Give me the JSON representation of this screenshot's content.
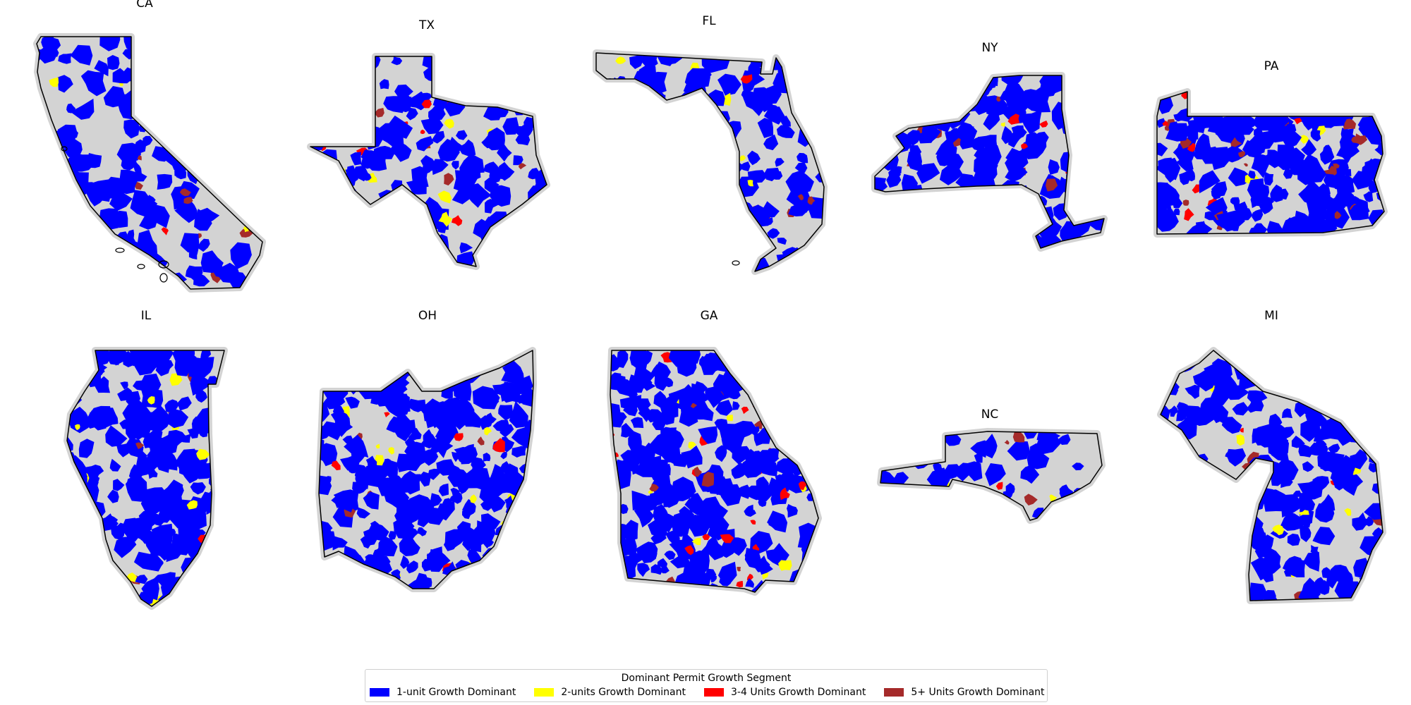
{
  "legend": {
    "title": "Dominant Permit Growth Segment",
    "items": [
      {
        "label": "1-unit Growth Dominant",
        "color": "#0000ff"
      },
      {
        "label": "2-units Growth Dominant",
        "color": "#ffff00"
      },
      {
        "label": "3-4 Units Growth Dominant",
        "color": "#ff0000"
      },
      {
        "label": "5+ Units Growth Dominant",
        "color": "#a52a2a"
      }
    ]
  },
  "no_data_color": "#d3d3d3",
  "panels": [
    {
      "label": "CA",
      "blue": 0.35,
      "yellow": 0.02,
      "red": 0.004,
      "brown": 0.03
    },
    {
      "label": "TX",
      "blue": 0.45,
      "yellow": 0.04,
      "red": 0.02,
      "brown": 0.04
    },
    {
      "label": "FL",
      "blue": 0.4,
      "yellow": 0.03,
      "red": 0.004,
      "brown": 0.05
    },
    {
      "label": "NY",
      "blue": 0.75,
      "yellow": 0.04,
      "red": 0.02,
      "brown": 0.06
    },
    {
      "label": "PA",
      "blue": 0.75,
      "yellow": 0.02,
      "red": 0.05,
      "brown": 0.06
    },
    {
      "label": "IL",
      "blue": 0.68,
      "yellow": 0.05,
      "red": 0.01,
      "brown": 0.03
    },
    {
      "label": "OH",
      "blue": 0.68,
      "yellow": 0.04,
      "red": 0.02,
      "brown": 0.02
    },
    {
      "label": "GA",
      "blue": 0.62,
      "yellow": 0.02,
      "red": 0.06,
      "brown": 0.03
    },
    {
      "label": "NC",
      "blue": 0.4,
      "yellow": 0.04,
      "red": 0.01,
      "brown": 0.08
    },
    {
      "label": "MI",
      "blue": 0.58,
      "yellow": 0.02,
      "red": 0.02,
      "brown": 0.02
    }
  ]
}
